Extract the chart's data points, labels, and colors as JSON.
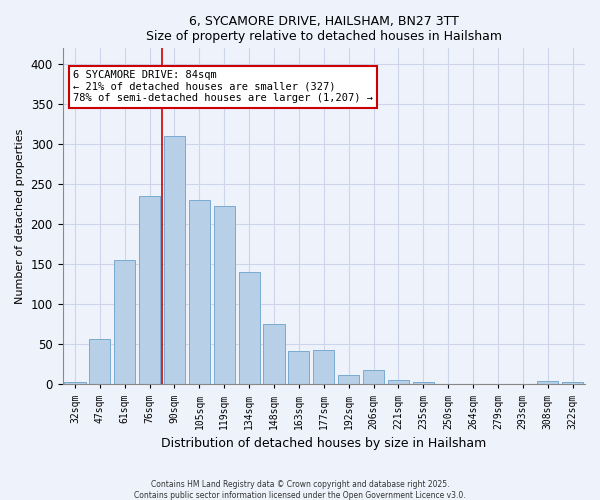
{
  "title": "6, SYCAMORE DRIVE, HAILSHAM, BN27 3TT",
  "subtitle": "Size of property relative to detached houses in Hailsham",
  "xlabel": "Distribution of detached houses by size in Hailsham",
  "ylabel": "Number of detached properties",
  "categories": [
    "32sqm",
    "47sqm",
    "61sqm",
    "76sqm",
    "90sqm",
    "105sqm",
    "119sqm",
    "134sqm",
    "148sqm",
    "163sqm",
    "177sqm",
    "192sqm",
    "206sqm",
    "221sqm",
    "235sqm",
    "250sqm",
    "264sqm",
    "279sqm",
    "293sqm",
    "308sqm",
    "322sqm"
  ],
  "values": [
    3,
    57,
    155,
    236,
    311,
    231,
    223,
    140,
    75,
    42,
    43,
    12,
    18,
    6,
    3,
    0,
    0,
    0,
    0,
    4,
    3
  ],
  "bar_color": "#b8cfe8",
  "bar_edge_color": "#7aaad0",
  "vline_x_index": 3,
  "vline_color": "#cc0000",
  "annotation_text": "6 SYCAMORE DRIVE: 84sqm\n← 21% of detached houses are smaller (327)\n78% of semi-detached houses are larger (1,207) →",
  "annotation_box_color": "#ffffff",
  "annotation_box_edge": "#cc0000",
  "ylim": [
    0,
    420
  ],
  "yticks": [
    0,
    50,
    100,
    150,
    200,
    250,
    300,
    350,
    400
  ],
  "footer1": "Contains HM Land Registry data © Crown copyright and database right 2025.",
  "footer2": "Contains public sector information licensed under the Open Government Licence v3.0.",
  "bg_color": "#eef2fb",
  "grid_color": "#cdd5ed"
}
